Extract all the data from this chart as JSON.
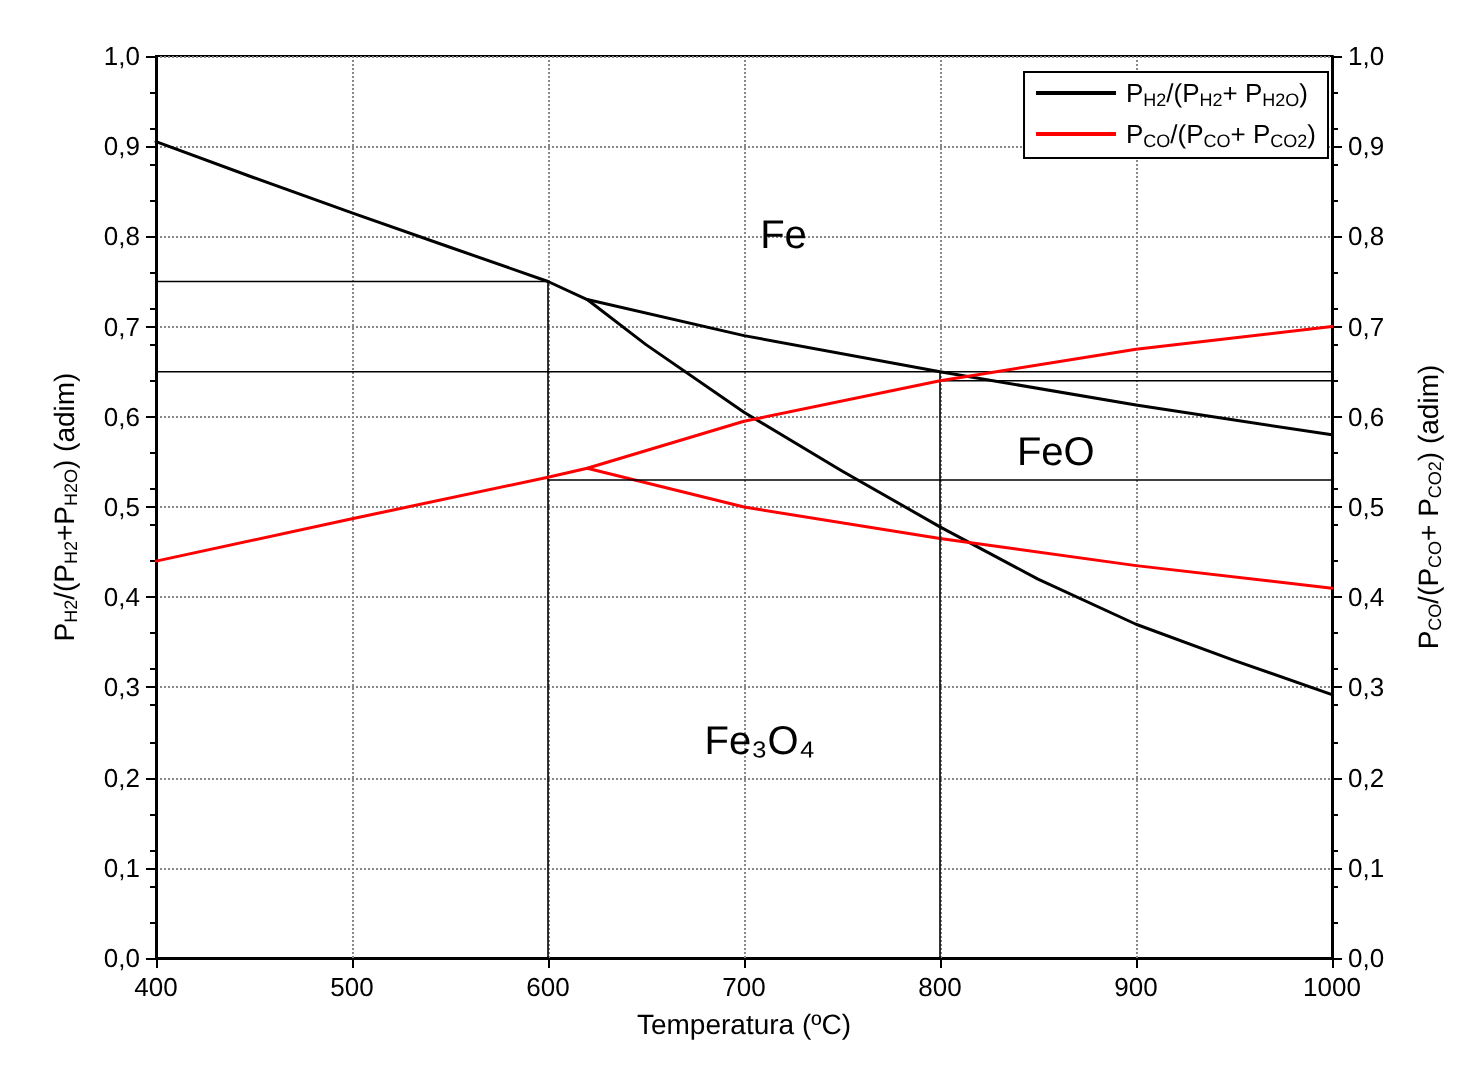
{
  "chart_data": {
    "type": "line",
    "xlabel": "Temperatura (ºC)",
    "ylabel": "P$_{H2}$/(P$_{H2}$+P$_{H2O}$) (adim)",
    "y2label": "P$_{CO}$/(P$_{CO}$+ P$_{CO2}$) (adim)",
    "xlim": [
      400,
      1000
    ],
    "xticks": [
      400,
      500,
      600,
      700,
      800,
      900,
      1000
    ],
    "ylim": [
      0,
      1
    ],
    "yticks": [
      {
        "value": 0,
        "label": "0,0"
      },
      {
        "value": 0.1,
        "label": "0,1"
      },
      {
        "value": 0.2,
        "label": "0,2"
      },
      {
        "value": 0.3,
        "label": "0,3"
      },
      {
        "value": 0.4,
        "label": "0,4"
      },
      {
        "value": 0.5,
        "label": "0,5"
      },
      {
        "value": 0.6,
        "label": "0,6"
      },
      {
        "value": 0.7,
        "label": "0,7"
      },
      {
        "value": 0.8,
        "label": "0,8"
      },
      {
        "value": 0.9,
        "label": "0,9"
      },
      {
        "value": 1,
        "label": "1,0"
      }
    ],
    "y2lim": [
      0,
      1
    ],
    "y2ticks": [
      {
        "value": 0,
        "label": "0,0"
      },
      {
        "value": 0.1,
        "label": "0,1"
      },
      {
        "value": 0.2,
        "label": "0,2"
      },
      {
        "value": 0.3,
        "label": "0,3"
      },
      {
        "value": 0.4,
        "label": "0,4"
      },
      {
        "value": 0.5,
        "label": "0,5"
      },
      {
        "value": 0.6,
        "label": "0,6"
      },
      {
        "value": 0.7,
        "label": "0,7"
      },
      {
        "value": 0.8,
        "label": "0,8"
      },
      {
        "value": 0.9,
        "label": "0,9"
      },
      {
        "value": 1,
        "label": "1,0"
      }
    ],
    "grid": true,
    "legend": "top right",
    "marker": "none",
    "line_style": "solid",
    "series": [
      {
        "name": "P$_{H2}$/(P$_{H2}$+ P$_{H2O}$)",
        "color": "#000000",
        "x": [
          400,
          450,
          500,
          550,
          600,
          620,
          700,
          800,
          900,
          1000
        ],
        "values": [
          0.905,
          0.865,
          0.826,
          0.788,
          0.75,
          0.73,
          0.69,
          0.65,
          0.613,
          0.58
        ]
      },
      {
        "color": "#000000",
        "x": [
          620,
          650,
          700,
          750,
          800,
          850,
          900,
          950,
          1000
        ],
        "values": [
          0.73,
          0.68,
          0.605,
          0.54,
          0.478,
          0.42,
          0.37,
          0.33,
          0.292
        ]
      },
      {
        "name": "P$_{CO}$/(P$_{CO}$+ P$_{CO2}$)",
        "color": "#ff0000",
        "x": [
          400,
          500,
          600,
          620,
          700,
          800,
          900,
          1000
        ],
        "values": [
          0.44,
          0.487,
          0.533,
          0.543,
          0.595,
          0.64,
          0.675,
          0.7
        ]
      },
      {
        "color": "#ff0000",
        "x": [
          620,
          700,
          800,
          900,
          1000
        ],
        "values": [
          0.543,
          0.5,
          0.465,
          0.435,
          0.41
        ]
      },
      {
        "color": "#000000",
        "x": [
          400,
          600
        ],
        "values": [
          0.75,
          0.75
        ]
      },
      {
        "color": "#000000",
        "x": [
          400,
          1000
        ],
        "values": [
          0.65,
          0.65
        ]
      },
      {
        "color": "#000000",
        "x": [
          800,
          1000
        ],
        "values": [
          0.64,
          0.64
        ]
      },
      {
        "color": "#000000",
        "x": [
          600,
          1000
        ],
        "values": [
          0.53,
          0.53
        ]
      },
      {
        "color": "#000000",
        "x": [
          600,
          600
        ],
        "values": [
          0,
          0.75
        ]
      },
      {
        "color": "#000000",
        "x": [
          800,
          800
        ],
        "values": [
          0,
          0.65
        ]
      }
    ],
    "annotations": [
      "Fe",
      "FeO",
      "Fe₃O₄"
    ]
  }
}
